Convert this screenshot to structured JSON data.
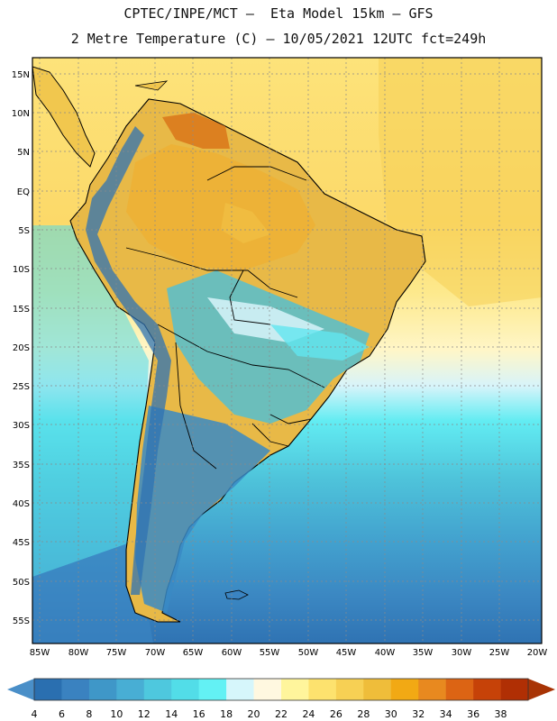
{
  "header": {
    "line1": "CPTEC/INPE/MCT –  Eta Model 15km – GFS",
    "line2": "2 Metre Temperature (C) – 10/05/2021 12UTC fct=249h"
  },
  "axes": {
    "lat_labels": [
      "15N",
      "10N",
      "5N",
      "EQ",
      "5S",
      "10S",
      "15S",
      "20S",
      "25S",
      "30S",
      "35S",
      "40S",
      "45S",
      "50S",
      "55S"
    ],
    "lon_labels": [
      "85W",
      "80W",
      "75W",
      "70W",
      "65W",
      "60W",
      "55W",
      "50W",
      "45W",
      "40W",
      "35W",
      "30W",
      "25W",
      "20W"
    ]
  },
  "colorbar": {
    "labels": [
      "4",
      "6",
      "8",
      "10",
      "12",
      "14",
      "16",
      "18",
      "20",
      "22",
      "24",
      "26",
      "28",
      "30",
      "32",
      "34",
      "36",
      "38"
    ],
    "colors": [
      "#2a6fb0",
      "#3a82c0",
      "#3f97c8",
      "#48aed4",
      "#4ec8de",
      "#52dde8",
      "#63f1f4",
      "#d6f6fb",
      "#fff8e0",
      "#fff59c",
      "#fde26e",
      "#f7d054",
      "#efbd3a",
      "#f2a914",
      "#e8891f",
      "#dc6414",
      "#c64208",
      "#b02f04"
    ],
    "under_color": "#4a8fc8",
    "over_color": "#a83405"
  }
}
